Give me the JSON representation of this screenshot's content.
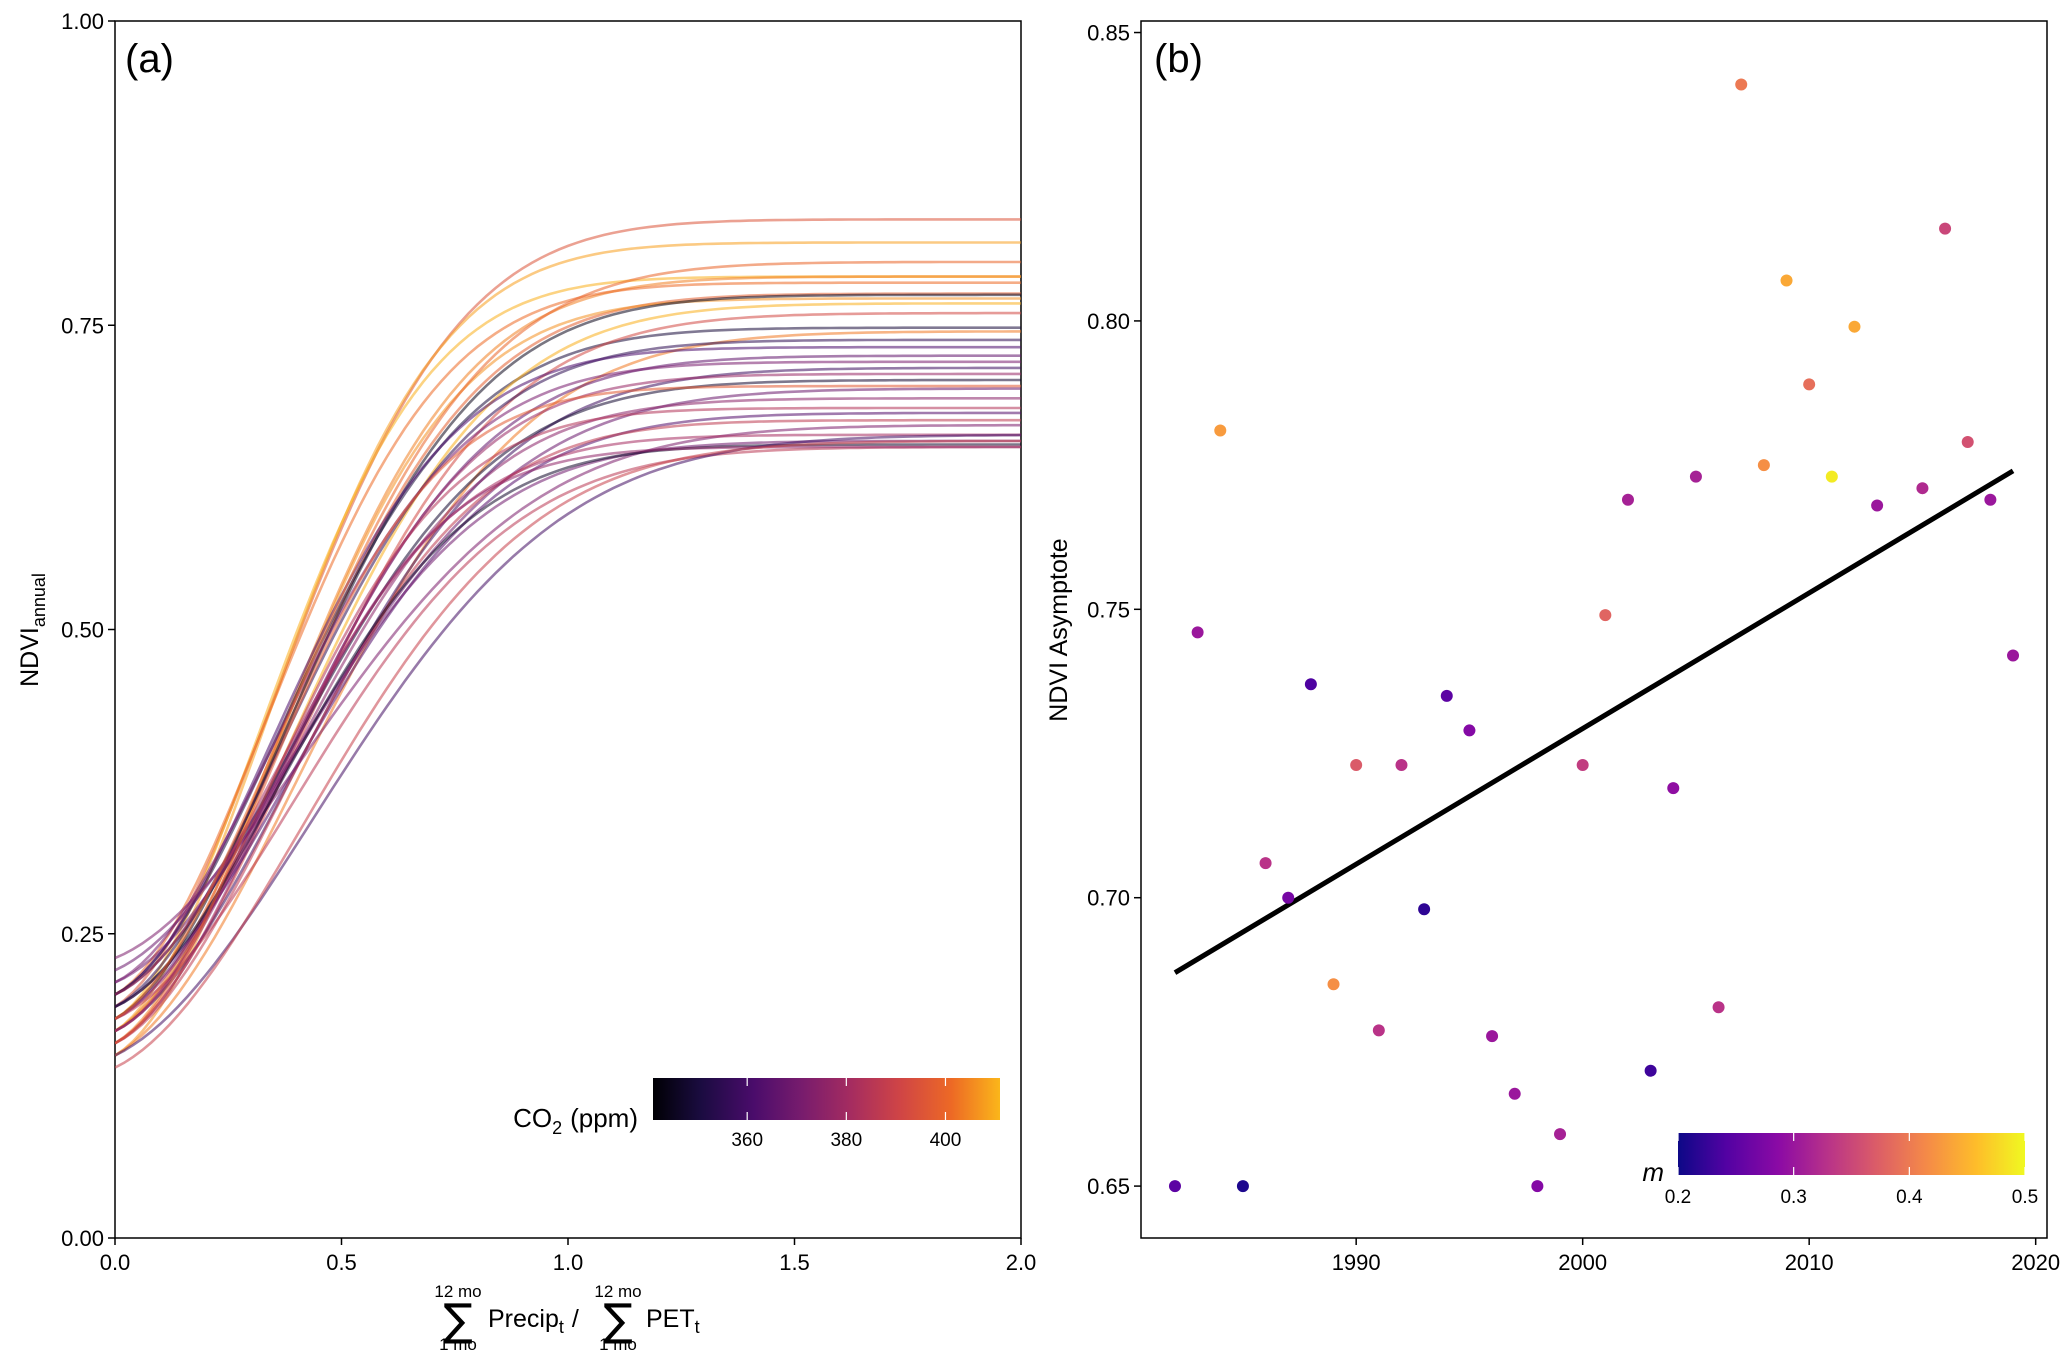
{
  "chart_data": [
    {
      "type": "line",
      "panel_label": "(a)",
      "ylabel_main": "NDVI",
      "ylabel_sub": "annual",
      "xlabel": {
        "sum_upper": "12 mo",
        "sum_lower": "1 mo",
        "sigma": "∑",
        "numerator": "Precip",
        "denominator": "PET",
        "subscript": "t",
        "divider": "/"
      },
      "xlim": [
        0,
        2.0
      ],
      "ylim": [
        0,
        1.0
      ],
      "x_ticks": [
        "0.0",
        "0.5",
        "1.0",
        "1.5",
        "2.0"
      ],
      "y_ticks": [
        "0.00",
        "0.25",
        "0.50",
        "0.75",
        "1.00"
      ],
      "colorbar": {
        "label_main": "CO",
        "label_sub": "2",
        "label_unit": "(ppm)",
        "range": [
          341,
          411
        ],
        "ticks": [
          360,
          380,
          400
        ],
        "colormap": "inferno"
      },
      "series_params": [
        {
          "co2": 395,
          "lower": 0.19,
          "upper": 0.837,
          "rate": 3.2
        },
        {
          "co2": 408,
          "lower": 0.17,
          "upper": 0.818,
          "rate": 3.6
        },
        {
          "co2": 410,
          "lower": 0.18,
          "upper": 0.79,
          "rate": 3.9
        },
        {
          "co2": 404,
          "lower": 0.16,
          "upper": 0.79,
          "rate": 3.1
        },
        {
          "co2": 401,
          "lower": 0.2,
          "upper": 0.785,
          "rate": 3.5
        },
        {
          "co2": 398,
          "lower": 0.17,
          "upper": 0.776,
          "rate": 2.9
        },
        {
          "co2": 406,
          "lower": 0.15,
          "upper": 0.772,
          "rate": 3.3
        },
        {
          "co2": 345,
          "lower": 0.18,
          "upper": 0.775,
          "rate": 2.8
        },
        {
          "co2": 350,
          "lower": 0.2,
          "upper": 0.748,
          "rate": 3.0
        },
        {
          "co2": 410,
          "lower": 0.17,
          "upper": 0.768,
          "rate": 2.6
        },
        {
          "co2": 392,
          "lower": 0.16,
          "upper": 0.76,
          "rate": 2.5
        },
        {
          "co2": 403,
          "lower": 0.15,
          "upper": 0.745,
          "rate": 2.2
        },
        {
          "co2": 355,
          "lower": 0.19,
          "upper": 0.738,
          "rate": 2.9
        },
        {
          "co2": 361,
          "lower": 0.2,
          "upper": 0.732,
          "rate": 3.3
        },
        {
          "co2": 366,
          "lower": 0.18,
          "upper": 0.725,
          "rate": 2.7
        },
        {
          "co2": 371,
          "lower": 0.21,
          "upper": 0.72,
          "rate": 3.1
        },
        {
          "co2": 358,
          "lower": 0.17,
          "upper": 0.715,
          "rate": 2.4
        },
        {
          "co2": 378,
          "lower": 0.16,
          "upper": 0.71,
          "rate": 3.0
        },
        {
          "co2": 348,
          "lower": 0.2,
          "upper": 0.705,
          "rate": 2.6
        },
        {
          "co2": 368,
          "lower": 0.22,
          "upper": 0.698,
          "rate": 2.2
        },
        {
          "co2": 375,
          "lower": 0.18,
          "upper": 0.69,
          "rate": 2.8
        },
        {
          "co2": 384,
          "lower": 0.17,
          "upper": 0.682,
          "rate": 3.4
        },
        {
          "co2": 363,
          "lower": 0.19,
          "upper": 0.678,
          "rate": 2.5
        },
        {
          "co2": 387,
          "lower": 0.16,
          "upper": 0.672,
          "rate": 2.9
        },
        {
          "co2": 372,
          "lower": 0.23,
          "upper": 0.668,
          "rate": 2.0
        },
        {
          "co2": 381,
          "lower": 0.2,
          "upper": 0.66,
          "rate": 3.2
        },
        {
          "co2": 369,
          "lower": 0.21,
          "upper": 0.655,
          "rate": 2.7
        },
        {
          "co2": 347,
          "lower": 0.19,
          "upper": 0.652,
          "rate": 3.0
        },
        {
          "co2": 386,
          "lower": 0.18,
          "upper": 0.65,
          "rate": 2.3
        },
        {
          "co2": 376,
          "lower": 0.17,
          "upper": 0.65,
          "rate": 3.6
        },
        {
          "co2": 359,
          "lower": 0.15,
          "upper": 0.66,
          "rate": 1.8
        },
        {
          "co2": 389,
          "lower": 0.14,
          "upper": 0.655,
          "rate": 2.1
        },
        {
          "co2": 400,
          "lower": 0.18,
          "upper": 0.802,
          "rate": 2.7
        },
        {
          "co2": 397,
          "lower": 0.16,
          "upper": 0.7,
          "rate": 3.7
        }
      ]
    },
    {
      "type": "scatter",
      "panel_label": "(b)",
      "ylabel": "NDVI Asymptote",
      "xlabel": "",
      "xlim": [
        1980.5,
        2020.5
      ],
      "ylim": [
        0.641,
        0.852
      ],
      "x_ticks": [
        "1990",
        "2000",
        "2010",
        "2020"
      ],
      "y_ticks": [
        "0.65",
        "0.70",
        "0.75",
        "0.80",
        "0.85"
      ],
      "points": [
        {
          "x": 1982,
          "y": 0.65,
          "m": 0.25
        },
        {
          "x": 1983,
          "y": 0.746,
          "m": 0.3
        },
        {
          "x": 1984,
          "y": 0.781,
          "m": 0.43
        },
        {
          "x": 1985,
          "y": 0.65,
          "m": 0.21
        },
        {
          "x": 1986,
          "y": 0.706,
          "m": 0.33
        },
        {
          "x": 1987,
          "y": 0.7,
          "m": 0.27
        },
        {
          "x": 1988,
          "y": 0.737,
          "m": 0.24
        },
        {
          "x": 1989,
          "y": 0.685,
          "m": 0.42
        },
        {
          "x": 1990,
          "y": 0.723,
          "m": 0.37
        },
        {
          "x": 1991,
          "y": 0.677,
          "m": 0.33
        },
        {
          "x": 1992,
          "y": 0.723,
          "m": 0.33
        },
        {
          "x": 1993,
          "y": 0.698,
          "m": 0.22
        },
        {
          "x": 1994,
          "y": 0.735,
          "m": 0.25
        },
        {
          "x": 1995,
          "y": 0.729,
          "m": 0.28
        },
        {
          "x": 1996,
          "y": 0.676,
          "m": 0.3
        },
        {
          "x": 1997,
          "y": 0.666,
          "m": 0.3
        },
        {
          "x": 1998,
          "y": 0.65,
          "m": 0.28
        },
        {
          "x": 1999,
          "y": 0.659,
          "m": 0.31
        },
        {
          "x": 2000,
          "y": 0.723,
          "m": 0.34
        },
        {
          "x": 2001,
          "y": 0.749,
          "m": 0.38
        },
        {
          "x": 2002,
          "y": 0.769,
          "m": 0.31
        },
        {
          "x": 2003,
          "y": 0.67,
          "m": 0.23
        },
        {
          "x": 2004,
          "y": 0.719,
          "m": 0.29
        },
        {
          "x": 2005,
          "y": 0.773,
          "m": 0.31
        },
        {
          "x": 2006,
          "y": 0.681,
          "m": 0.33
        },
        {
          "x": 2007,
          "y": 0.841,
          "m": 0.4
        },
        {
          "x": 2008,
          "y": 0.775,
          "m": 0.42
        },
        {
          "x": 2009,
          "y": 0.807,
          "m": 0.44
        },
        {
          "x": 2010,
          "y": 0.789,
          "m": 0.39
        },
        {
          "x": 2011,
          "y": 0.773,
          "m": 0.49
        },
        {
          "x": 2012,
          "y": 0.799,
          "m": 0.44
        },
        {
          "x": 2013,
          "y": 0.768,
          "m": 0.3
        },
        {
          "x": 2015,
          "y": 0.771,
          "m": 0.32
        },
        {
          "x": 2016,
          "y": 0.816,
          "m": 0.35
        },
        {
          "x": 2017,
          "y": 0.779,
          "m": 0.36
        },
        {
          "x": 2018,
          "y": 0.769,
          "m": 0.3
        },
        {
          "x": 2019,
          "y": 0.742,
          "m": 0.3
        }
      ],
      "trend_line": {
        "x": [
          1982,
          2019
        ],
        "y": [
          0.687,
          0.774
        ]
      },
      "colorbar": {
        "label": "m",
        "range": [
          0.2,
          0.5
        ],
        "ticks": [
          "0.2",
          "0.3",
          "0.4",
          "0.5"
        ],
        "colormap": "plasma"
      }
    }
  ]
}
